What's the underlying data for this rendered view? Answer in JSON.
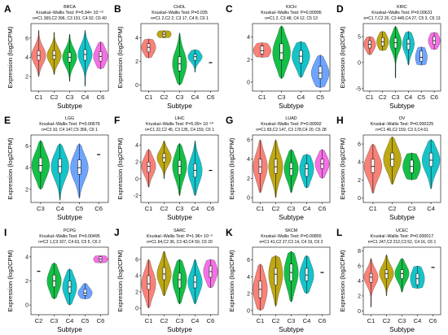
{
  "chart_data": [
    {
      "letter": "A",
      "cancer": "BRCA",
      "test": "Kruskal−Wallis Test: P=5.94× 10⁻¹³",
      "counts": "n=C1 369,C2 396, C3 191, C4 92, C6 40",
      "type": "violin",
      "xlabel": "Subtype",
      "ylabel": "Expression (log2CPM)",
      "yticks": [
        2,
        4,
        6
      ],
      "ylim": [
        0.5,
        7.5
      ],
      "categories": [
        "C1",
        "C2",
        "C3",
        "C4",
        "C6"
      ],
      "series": [
        {
          "median": 4.2,
          "q1": 3.7,
          "q3": 4.7,
          "min": 2.0,
          "max": 6.8
        },
        {
          "median": 4.2,
          "q1": 3.8,
          "q3": 4.7,
          "min": 2.2,
          "max": 6.6
        },
        {
          "median": 4.0,
          "q1": 3.5,
          "q3": 4.5,
          "min": 1.5,
          "max": 6.4
        },
        {
          "median": 4.3,
          "q1": 3.7,
          "q3": 4.8,
          "min": 1.0,
          "max": 6.8
        },
        {
          "median": 4.1,
          "q1": 3.6,
          "q3": 4.6,
          "min": 2.8,
          "max": 5.6
        }
      ]
    },
    {
      "letter": "B",
      "cancer": "CHOL",
      "test": "Kruskal−Wallis Test: P=0.035",
      "counts": "n=C1 2,C2 2, C3 17, C4 8, C6 1",
      "type": "violin",
      "xlabel": "Subtype",
      "ylabel": "Expression (log2CPM)",
      "yticks": [
        0,
        2,
        4
      ],
      "ylim": [
        -0.5,
        5.2
      ],
      "categories": [
        "C1",
        "C2",
        "C3",
        "C4",
        "C6"
      ],
      "series": [
        {
          "median": 3.2,
          "q1": 2.8,
          "q3": 3.5,
          "min": 2.3,
          "max": 3.9
        },
        {
          "median": 4.3,
          "q1": 4.1,
          "q3": 4.5,
          "min": 4.0,
          "max": 4.6
        },
        {
          "median": 1.8,
          "q1": 1.2,
          "q3": 2.4,
          "min": 0.0,
          "max": 4.4
        },
        {
          "median": 2.4,
          "q1": 2.1,
          "q3": 2.6,
          "min": 1.1,
          "max": 3.0
        },
        {
          "median": 1.9,
          "q1": 1.9,
          "q3": 1.9,
          "min": 1.9,
          "max": 1.9
        }
      ]
    },
    {
      "letter": "C",
      "cancer": "KICH",
      "test": "Kruskal−Wallis Test: P=0.00995",
      "counts": "n=C1 2, C3 48, C4 12, C5 13",
      "type": "violin",
      "xlabel": "Subtype",
      "ylabel": "",
      "yticks": [
        0,
        2,
        4
      ],
      "ylim": [
        -0.8,
        5.2
      ],
      "categories": [
        "C1",
        "C3",
        "C4",
        "C5"
      ],
      "series": [
        {
          "median": 2.8,
          "q1": 2.5,
          "q3": 3.2,
          "min": 2.2,
          "max": 3.5
        },
        {
          "median": 2.6,
          "q1": 2.0,
          "q3": 3.4,
          "min": 0.3,
          "max": 5.0
        },
        {
          "median": 2.3,
          "q1": 1.7,
          "q3": 2.8,
          "min": 0.4,
          "max": 3.6
        },
        {
          "median": 0.8,
          "q1": 0.3,
          "q3": 1.4,
          "min": -0.5,
          "max": 2.4
        }
      ]
    },
    {
      "letter": "D",
      "cancer": "KIRC",
      "test": "Kruskal−Wallis Test: P=0.00631",
      "counts": "n=C1 7,C2 20, C3 445,C4 27, C5 3, C6 13",
      "type": "violin",
      "xlabel": "Subtype",
      "ylabel": "Expression (log2CPM)",
      "yticks": [
        -5,
        0,
        5
      ],
      "ylim": [
        -5.5,
        7.5
      ],
      "categories": [
        "C1",
        "C2",
        "C3",
        "C4",
        "C5",
        "C6"
      ],
      "series": [
        {
          "median": 3.5,
          "q1": 2.8,
          "q3": 4.2,
          "min": 1.5,
          "max": 5.0
        },
        {
          "median": 4.0,
          "q1": 3.2,
          "q3": 4.8,
          "min": 2.3,
          "max": 6.0
        },
        {
          "median": 3.8,
          "q1": 2.8,
          "q3": 4.7,
          "min": -3.0,
          "max": 7.0
        },
        {
          "median": 3.6,
          "q1": 2.5,
          "q3": 4.5,
          "min": -0.5,
          "max": 6.0
        },
        {
          "median": 1.0,
          "q1": 0.2,
          "q3": 2.2,
          "min": -0.5,
          "max": 3.0
        },
        {
          "median": 4.2,
          "q1": 3.5,
          "q3": 5.0,
          "min": 2.5,
          "max": 5.8
        }
      ]
    },
    {
      "letter": "E",
      "cancer": "LGG",
      "test": "Kruskal−Wallis Test: P=0.00676",
      "counts": "n=C3 10, C4 147,C5 356, C6 1",
      "type": "violin",
      "xlabel": "Subtype",
      "ylabel": "Expression (log2CPM)",
      "yticks": [
        2,
        4,
        6
      ],
      "ylim": [
        0.8,
        7.0
      ],
      "categories": [
        "C3",
        "C4",
        "C5",
        "C6"
      ],
      "series": [
        {
          "median": 4.2,
          "q1": 3.6,
          "q3": 4.9,
          "min": 2.0,
          "max": 6.5
        },
        {
          "median": 4.1,
          "q1": 3.5,
          "q3": 4.8,
          "min": 1.0,
          "max": 6.2
        },
        {
          "median": 4.0,
          "q1": 3.4,
          "q3": 4.7,
          "min": 1.2,
          "max": 6.2
        },
        {
          "median": 5.2,
          "q1": 5.2,
          "q3": 5.2,
          "min": 5.2,
          "max": 5.2
        }
      ]
    },
    {
      "letter": "F",
      "cancer": "LIHC",
      "test": "Kruskal−Wallis Test: P=5.09× 10⁻¹⁰",
      "counts": "n=C1 22,C2 45, C3 135, C4 159, C6 1",
      "type": "violin",
      "xlabel": "Subtype",
      "ylabel": "Expression (log2CPM)",
      "yticks": [
        -2,
        0,
        2,
        4
      ],
      "ylim": [
        -2.8,
        5.2
      ],
      "categories": [
        "C1",
        "C2",
        "C3",
        "C4",
        "C6"
      ],
      "series": [
        {
          "median": 1.5,
          "q1": 0.8,
          "q3": 2.0,
          "min": -1.0,
          "max": 3.5
        },
        {
          "median": 2.5,
          "q1": 2.0,
          "q3": 3.0,
          "min": 0.0,
          "max": 4.5
        },
        {
          "median": 1.5,
          "q1": 0.5,
          "q3": 2.2,
          "min": -2.0,
          "max": 4.2
        },
        {
          "median": 1.0,
          "q1": 0.2,
          "q3": 1.8,
          "min": -2.0,
          "max": 4.5
        },
        {
          "median": 1.0,
          "q1": 1.0,
          "q3": 1.0,
          "min": 1.0,
          "max": 1.0
        }
      ]
    },
    {
      "letter": "G",
      "cancer": "LUAD",
      "test": "Kruskal−Wallis Test: P=0.00992",
      "counts": "n=C1 83,C2 147, C3 178,C4 20, C6 28",
      "type": "violin",
      "xlabel": "Subtype",
      "ylabel": "Expression (log2CPM)",
      "yticks": [
        0,
        2,
        4,
        6
      ],
      "ylim": [
        -0.5,
        6.5
      ],
      "categories": [
        "C1",
        "C2",
        "C3",
        "C4",
        "C6"
      ],
      "series": [
        {
          "median": 3.2,
          "q1": 2.5,
          "q3": 4.0,
          "min": 0.5,
          "max": 6.0
        },
        {
          "median": 3.2,
          "q1": 2.5,
          "q3": 4.0,
          "min": 0.0,
          "max": 6.0
        },
        {
          "median": 3.0,
          "q1": 2.3,
          "q3": 3.6,
          "min": 0.5,
          "max": 5.0
        },
        {
          "median": 3.0,
          "q1": 2.2,
          "q3": 3.5,
          "min": 1.0,
          "max": 4.5
        },
        {
          "median": 3.5,
          "q1": 3.0,
          "q3": 4.0,
          "min": 2.0,
          "max": 5.0
        }
      ]
    },
    {
      "letter": "H",
      "cancer": "OV",
      "test": "Kruskal−Wallis Test: P=0.000225",
      "counts": "n=C1 46,C2 159, C3 3,C4 61",
      "type": "violin",
      "xlabel": "Subtype",
      "ylabel": "Expression (log2CPM)",
      "yticks": [
        0,
        2,
        4,
        6
      ],
      "ylim": [
        -0.5,
        7.0
      ],
      "categories": [
        "C1",
        "C2",
        "C3",
        "C4"
      ],
      "series": [
        {
          "median": 3.5,
          "q1": 2.8,
          "q3": 4.3,
          "min": 0.5,
          "max": 6.0
        },
        {
          "median": 4.3,
          "q1": 3.5,
          "q3": 5.0,
          "min": 1.5,
          "max": 6.8
        },
        {
          "median": 3.5,
          "q1": 2.8,
          "q3": 4.2,
          "min": 2.0,
          "max": 5.0
        },
        {
          "median": 4.2,
          "q1": 3.5,
          "q3": 5.0,
          "min": 1.0,
          "max": 6.5
        }
      ]
    },
    {
      "letter": "I",
      "cancer": "PCPG",
      "test": "Kruskal−Wallis Test: P=0.00495",
      "counts": "n=C2 1,C3 107, C4 63, C5 5, C6 2",
      "type": "violin",
      "xlabel": "Subtype",
      "ylabel": "Expression (log2CPM)",
      "yticks": [
        0,
        2,
        4
      ],
      "ylim": [
        -0.8,
        4.8
      ],
      "categories": [
        "C2",
        "C3",
        "C4",
        "C5",
        "C6"
      ],
      "series": [
        {
          "median": 2.8,
          "q1": 2.8,
          "q3": 2.8,
          "min": 2.8,
          "max": 2.8
        },
        {
          "median": 2.0,
          "q1": 1.5,
          "q3": 2.5,
          "min": 0.5,
          "max": 3.5
        },
        {
          "median": 1.5,
          "q1": 1.0,
          "q3": 2.0,
          "min": 0.0,
          "max": 3.0
        },
        {
          "median": 1.0,
          "q1": 0.8,
          "q3": 1.3,
          "min": 0.5,
          "max": 1.8
        },
        {
          "median": 3.8,
          "q1": 3.6,
          "q3": 4.0,
          "min": 3.5,
          "max": 4.1
        }
      ]
    },
    {
      "letter": "J",
      "cancer": "SARC",
      "test": "Kruskal−Wallis Test: P=1.96× 10⁻⁶",
      "counts": "n=C1 64,C2 36, C3 42,C4 59, C6 20",
      "type": "violin",
      "xlabel": "Subtype",
      "ylabel": "Expression (log2CPM)",
      "yticks": [
        0,
        2,
        4,
        6
      ],
      "ylim": [
        -0.8,
        7.5
      ],
      "categories": [
        "C1",
        "C2",
        "C3",
        "C4",
        "C6"
      ],
      "series": [
        {
          "median": 3.0,
          "q1": 2.3,
          "q3": 4.0,
          "min": 0.0,
          "max": 6.0
        },
        {
          "median": 4.2,
          "q1": 3.5,
          "q3": 5.0,
          "min": 1.5,
          "max": 7.0
        },
        {
          "median": 3.5,
          "q1": 2.5,
          "q3": 4.3,
          "min": 0.5,
          "max": 6.0
        },
        {
          "median": 3.2,
          "q1": 2.5,
          "q3": 4.0,
          "min": 0.5,
          "max": 6.0
        },
        {
          "median": 4.5,
          "q1": 3.8,
          "q3": 5.2,
          "min": 2.5,
          "max": 6.0
        }
      ]
    },
    {
      "letter": "K",
      "cancer": "SKCM",
      "test": "Kruskal−Wallis Test: P=0.00855",
      "counts": "n=C1 41,C2 27,C3 14, C4 19, C6 2",
      "type": "violin",
      "xlabel": "Subtype",
      "ylabel": "Expression (log2CPM)",
      "yticks": [
        0,
        2,
        4,
        6
      ],
      "ylim": [
        -0.5,
        7.5
      ],
      "categories": [
        "C1",
        "C2",
        "C3",
        "C4",
        "C6"
      ],
      "series": [
        {
          "median": 2.5,
          "q1": 1.5,
          "q3": 3.5,
          "min": 0.0,
          "max": 5.5
        },
        {
          "median": 4.3,
          "q1": 3.0,
          "q3": 5.0,
          "min": 0.5,
          "max": 6.5
        },
        {
          "median": 4.5,
          "q1": 3.5,
          "q3": 5.5,
          "min": 1.0,
          "max": 7.0
        },
        {
          "median": 4.2,
          "q1": 3.5,
          "q3": 5.0,
          "min": 2.0,
          "max": 6.5
        },
        {
          "median": 4.5,
          "q1": 4.5,
          "q3": 4.5,
          "min": 4.5,
          "max": 4.5
        }
      ]
    },
    {
      "letter": "L",
      "cancer": "UCEC",
      "test": "Kruskal−Wallis Test: P=0.000017",
      "counts": "n=C1 247,C2 212,C3 52, C4 16, C6 1",
      "type": "violin",
      "xlabel": "Subtype",
      "ylabel": "Expression (log2CPM)",
      "yticks": [
        0,
        2,
        4,
        6,
        8
      ],
      "ylim": [
        -0.5,
        8.5
      ],
      "categories": [
        "C1",
        "C2",
        "C3",
        "C4",
        "C6"
      ],
      "series": [
        {
          "median": 4.5,
          "q1": 3.8,
          "q3": 5.0,
          "min": 0.5,
          "max": 7.0
        },
        {
          "median": 5.0,
          "q1": 4.3,
          "q3": 5.5,
          "min": 2.0,
          "max": 7.5
        },
        {
          "median": 5.0,
          "q1": 4.3,
          "q3": 5.5,
          "min": 2.5,
          "max": 7.0
        },
        {
          "median": 4.3,
          "q1": 3.5,
          "q3": 5.0,
          "min": 3.0,
          "max": 6.0
        },
        {
          "median": 5.8,
          "q1": 5.8,
          "q3": 5.8,
          "min": 5.8,
          "max": 5.8
        }
      ]
    }
  ],
  "palette": {
    "C1": "#f8766d",
    "C2": "#b79f00",
    "C3": "#00ba38",
    "C4": "#00bfc4",
    "C5": "#619cff",
    "C6": "#f564e3"
  },
  "box_color": "#ffffff",
  "outline_color": "#000000"
}
